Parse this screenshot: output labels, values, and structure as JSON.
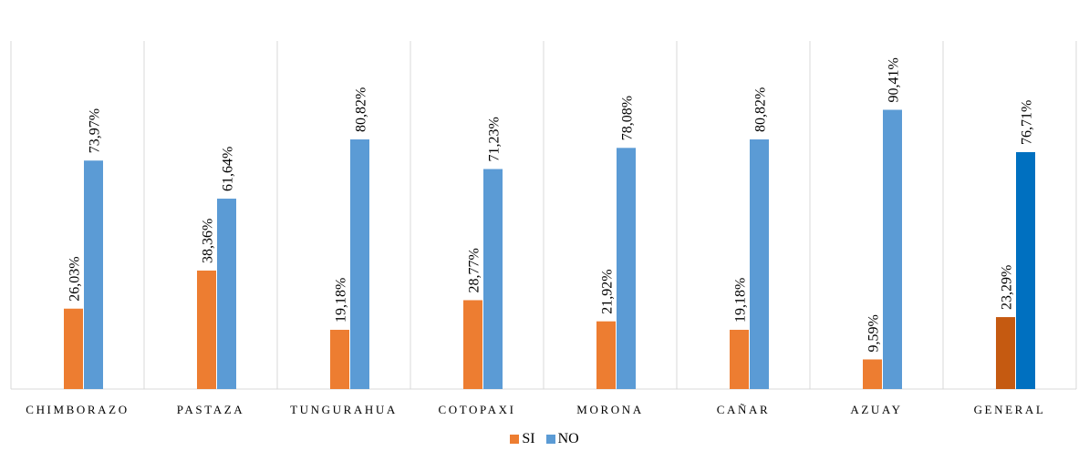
{
  "chart_data": {
    "type": "bar",
    "categories": [
      "CHIMBORAZO",
      "PASTAZA",
      "TUNGURAHUA",
      "COTOPAXI",
      "MORONA",
      "CAÑAR",
      "AZUAY",
      "GENERAL"
    ],
    "series": [
      {
        "name": "SI",
        "color": "#ED7D31",
        "values": [
          26.03,
          38.36,
          19.18,
          28.77,
          21.92,
          19.18,
          9.59,
          23.29
        ],
        "labels": [
          "26,03%",
          "38,36%",
          "19,18%",
          "28,77%",
          "21,92%",
          "19,18%",
          "9,59%",
          "23,29%"
        ]
      },
      {
        "name": "NO",
        "color": "#5B9BD5",
        "values": [
          73.97,
          61.64,
          80.82,
          71.23,
          78.08,
          80.82,
          90.41,
          76.71
        ],
        "labels": [
          "73,97%",
          "61,64%",
          "80,82%",
          "71,23%",
          "78,08%",
          "80,82%",
          "90,41%",
          "76,71%"
        ]
      }
    ],
    "highlight": {
      "category_index": 7,
      "colors": [
        "#C55A11",
        "#0070C0"
      ]
    },
    "ylim": [
      0,
      100
    ],
    "grid": false,
    "legend_position": "bottom",
    "title": "",
    "xlabel": "",
    "ylabel": ""
  }
}
